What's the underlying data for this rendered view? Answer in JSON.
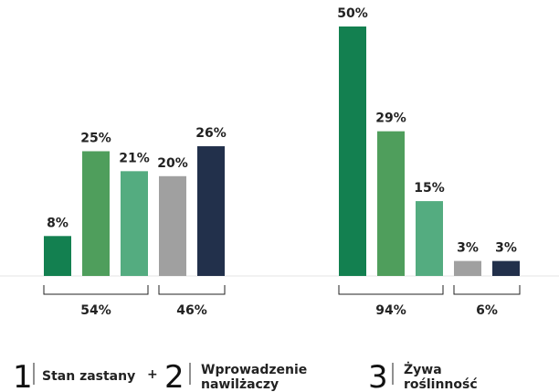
{
  "chart_data": {
    "type": "bar",
    "panels": [
      {
        "values": [
          8,
          25,
          21,
          20,
          26
        ],
        "labels": [
          "8%",
          "25%",
          "21%",
          "20%",
          "26%"
        ],
        "colors": [
          "#138050",
          "#4f9e5c",
          "#54ac80",
          "#a0a0a0",
          "#22304b"
        ],
        "groups": [
          {
            "label": "54%",
            "bars": [
              0,
              1,
              2
            ]
          },
          {
            "label": "46%",
            "bars": [
              3,
              4
            ]
          }
        ]
      },
      {
        "values": [
          50,
          29,
          15,
          3,
          3
        ],
        "labels": [
          "50%",
          "29%",
          "15%",
          "3%",
          "3%"
        ],
        "colors": [
          "#138050",
          "#4f9e5c",
          "#54ac80",
          "#a0a0a0",
          "#22304b"
        ],
        "groups": [
          {
            "label": "94%",
            "bars": [
              0,
              1,
              2
            ]
          },
          {
            "label": "6%",
            "bars": [
              3,
              4
            ]
          }
        ]
      }
    ],
    "ylim": [
      0,
      50
    ],
    "grid": false
  },
  "legend": {
    "item1": {
      "number": "1",
      "text": "Stan zastany"
    },
    "plus": "+",
    "item2": {
      "number": "2",
      "line1": "Wprowadzenie",
      "line2": "nawilżaczy"
    },
    "item3": {
      "number": "3",
      "line1": "Żywa",
      "line2": "roślinność"
    }
  }
}
